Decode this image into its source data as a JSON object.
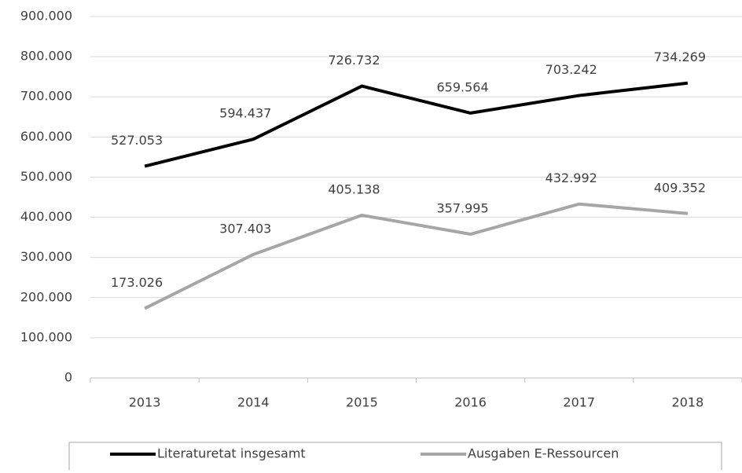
{
  "chart_data": {
    "type": "line",
    "categories": [
      "2013",
      "2014",
      "2015",
      "2016",
      "2017",
      "2018"
    ],
    "series": [
      {
        "name": "Literaturetat insgesamt",
        "color": "#000000",
        "values": [
          527053,
          594437,
          726732,
          659564,
          703242,
          734269
        ],
        "value_labels": [
          "527.053",
          "594.437",
          "726.732",
          "659.564",
          "703.242",
          "734.269"
        ]
      },
      {
        "name": "Ausgaben E-Ressourcen",
        "color": "#a6a6a6",
        "values": [
          173026,
          307403,
          405138,
          357995,
          432992,
          409352
        ],
        "value_labels": [
          "173.026",
          "307.403",
          "405.138",
          "357.995",
          "432.992",
          "409.352"
        ]
      }
    ],
    "ylim": [
      0,
      900000
    ],
    "yticks": [
      0,
      {
        "value": 100000,
        "label": "100.000"
      },
      {
        "value": 200000,
        "label": "200.000"
      },
      {
        "value": 300000,
        "label": "300.000"
      },
      {
        "value": 400000,
        "label": "400.000"
      },
      {
        "value": 500000,
        "label": "500.000"
      },
      {
        "value": 600000,
        "label": "600.000"
      },
      {
        "value": 700000,
        "label": "700.000"
      },
      {
        "value": 800000,
        "label": "800.000"
      },
      {
        "value": 900000,
        "label": "900.000"
      }
    ],
    "grid": true,
    "legend": "bottom"
  }
}
